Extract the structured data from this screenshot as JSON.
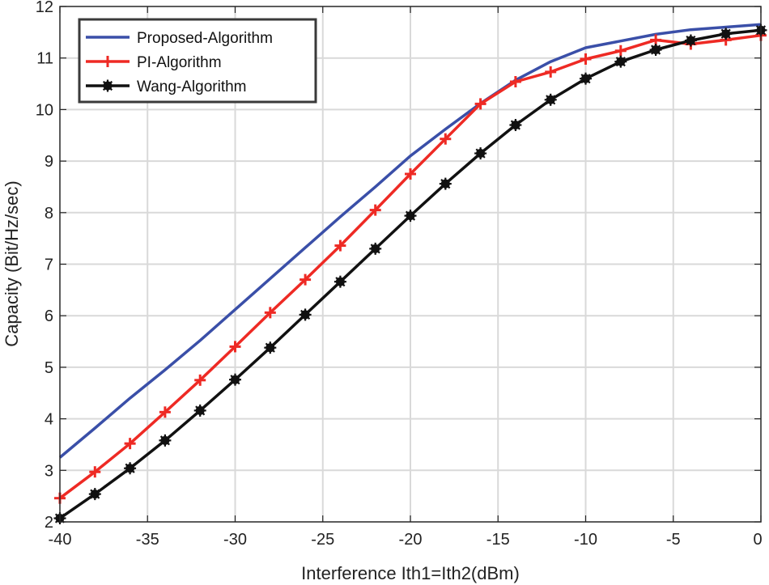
{
  "chart_data": {
    "type": "line",
    "title": "",
    "xlabel": "Interference Ith1=Ith2(dBm)",
    "ylabel": "Capacity (Bit/Hz/sec)",
    "xlim": [
      -40,
      0
    ],
    "ylim": [
      2,
      12
    ],
    "xticks": [
      -40,
      -35,
      -30,
      -25,
      -20,
      -15,
      -10,
      -5,
      0
    ],
    "yticks": [
      2,
      3,
      4,
      5,
      6,
      7,
      8,
      9,
      10,
      11,
      12
    ],
    "grid": true,
    "legend_position": "top-left",
    "x": [
      -40,
      -38,
      -36,
      -34,
      -32,
      -30,
      -28,
      -26,
      -24,
      -22,
      -20,
      -18,
      -16,
      -14,
      -12,
      -10,
      -8,
      -6,
      -4,
      -2,
      0
    ],
    "series": [
      {
        "name": "Proposed-Algorithm",
        "color": "#3a4fa8",
        "marker": "none",
        "values": [
          3.25,
          3.82,
          4.4,
          4.95,
          5.52,
          6.12,
          6.72,
          7.32,
          7.92,
          8.5,
          9.1,
          9.62,
          10.12,
          10.57,
          10.93,
          11.2,
          11.33,
          11.46,
          11.55,
          11.6,
          11.65
        ]
      },
      {
        "name": "PI-Algorithm",
        "color": "#ee2a24",
        "marker": "plus",
        "values": [
          2.46,
          2.97,
          3.52,
          4.13,
          4.75,
          5.4,
          6.06,
          6.7,
          7.36,
          8.05,
          8.75,
          9.43,
          10.11,
          10.54,
          10.73,
          10.98,
          11.14,
          11.35,
          11.27,
          11.35,
          11.44
        ]
      },
      {
        "name": "Wang-Algorithm",
        "color": "#111111",
        "marker": "star",
        "values": [
          2.07,
          2.54,
          3.04,
          3.58,
          4.16,
          4.76,
          5.38,
          6.02,
          6.66,
          7.3,
          7.94,
          8.56,
          9.15,
          9.7,
          10.19,
          10.6,
          10.93,
          11.16,
          11.34,
          11.47,
          11.54
        ]
      }
    ]
  }
}
